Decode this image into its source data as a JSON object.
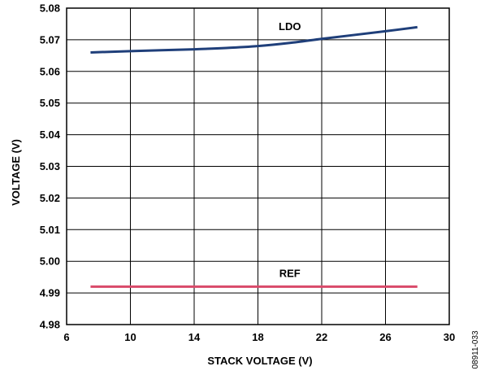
{
  "chart_data": {
    "type": "line",
    "xlabel": "STACK VOLTAGE (V)",
    "ylabel": "VOLTAGE (V)",
    "xlim": [
      6,
      30
    ],
    "ylim": [
      4.98,
      5.08
    ],
    "x_ticks": [
      6,
      10,
      14,
      18,
      22,
      26,
      30
    ],
    "y_ticks": [
      4.98,
      4.99,
      5.0,
      5.01,
      5.02,
      5.03,
      5.04,
      5.05,
      5.06,
      5.07,
      5.08
    ],
    "x_tick_labels": [
      "6",
      "10",
      "14",
      "18",
      "22",
      "26",
      "30"
    ],
    "y_tick_labels": [
      "4.98",
      "4.99",
      "5.00",
      "5.01",
      "5.02",
      "5.03",
      "5.04",
      "5.05",
      "5.06",
      "5.07",
      "5.08"
    ],
    "grid": true,
    "series": [
      {
        "name": "LDO",
        "color": "#1f3f7a",
        "x": [
          7.5,
          10,
          14,
          16,
          18,
          20,
          22,
          24,
          26,
          28
        ],
        "y": [
          5.066,
          5.0664,
          5.067,
          5.0674,
          5.068,
          5.069,
          5.0703,
          5.0715,
          5.0727,
          5.074
        ]
      },
      {
        "name": "REF",
        "color": "#d94a6a",
        "x": [
          7.5,
          28
        ],
        "y": [
          4.992,
          4.992
        ]
      }
    ],
    "annotations": [
      {
        "text": "LDO",
        "x": 20,
        "y": 5.073
      },
      {
        "text": "REF",
        "x": 20,
        "y": 4.995
      }
    ],
    "figure_id": "08911-033"
  }
}
